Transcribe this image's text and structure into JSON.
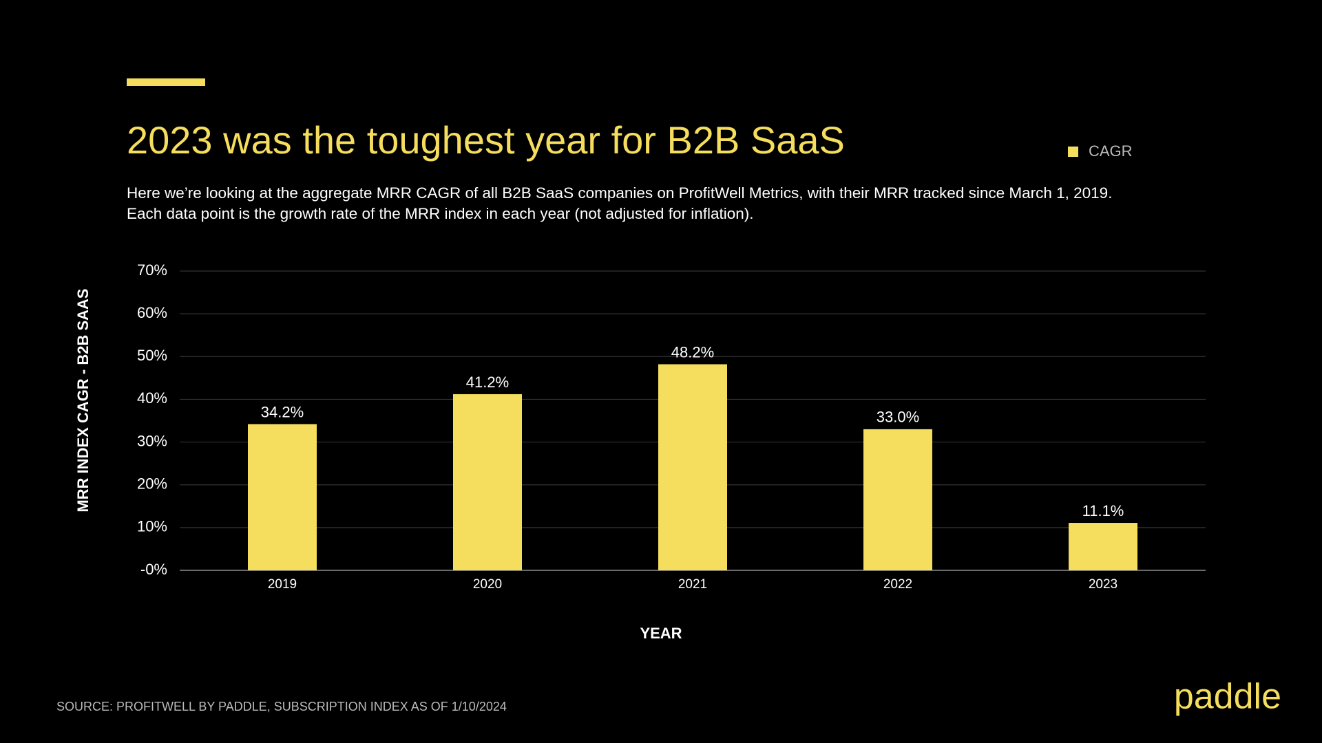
{
  "chart_data": {
    "type": "bar",
    "title": "2023 was the toughest year for B2B SaaS",
    "subtitle": [
      "Here we’re looking at the aggregate MRR CAGR of all B2B SaaS companies on ProfitWell Metrics, with their MRR tracked since March 1, 2019.",
      "Each data point is the growth rate of the MRR index in each year (not adjusted for inflation)."
    ],
    "x_label": "YEAR",
    "y_label": "MRR INDEX CAGR - B2B SAAS",
    "categories": [
      "2019",
      "2020",
      "2021",
      "2022",
      "2023"
    ],
    "series": [
      {
        "name": "CAGR",
        "color": "#f5dd5d",
        "values": [
          34.2,
          41.2,
          48.2,
          33.0,
          11.1
        ],
        "value_labels": [
          "34.2%",
          "41.2%",
          "48.2%",
          "33.0%",
          "11.1%"
        ]
      }
    ],
    "ylim": [
      0,
      70
    ],
    "yticks": [
      {
        "value": 0,
        "label": "-0%"
      },
      {
        "value": 10,
        "label": "10%"
      },
      {
        "value": 20,
        "label": "20%"
      },
      {
        "value": 30,
        "label": "30%"
      },
      {
        "value": 40,
        "label": "40%"
      },
      {
        "value": 50,
        "label": "50%"
      },
      {
        "value": 60,
        "label": "60%"
      },
      {
        "value": 70,
        "label": "70%"
      }
    ],
    "grid": true,
    "legend": "top-right",
    "source": "SOURCE: PROFITWELL BY PADDLE, SUBSCRIPTION INDEX AS OF 1/10/2024",
    "brand": "paddle"
  }
}
